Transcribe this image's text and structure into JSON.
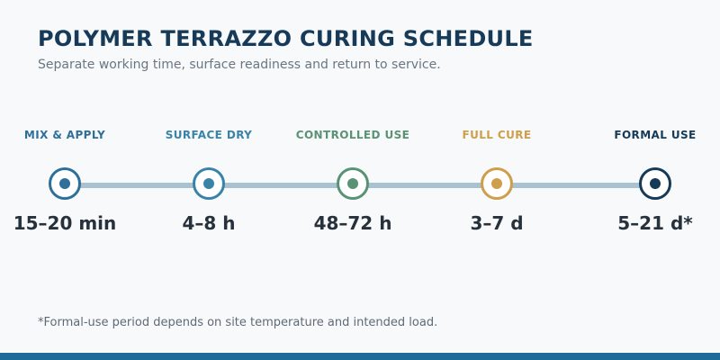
{
  "header": {
    "title": "POLYMER TERRAZZO CURING SCHEDULE",
    "subtitle": "Separate working time, surface readiness and return to service."
  },
  "stages": [
    {
      "label": "MIX & APPLY",
      "duration": "15–20 min",
      "color": "#2f6f9a"
    },
    {
      "label": "SURFACE DRY",
      "duration": "4–8 h",
      "color": "#3a83a8"
    },
    {
      "label": "CONTROLLED USE",
      "duration": "48–72 h",
      "color": "#5a9276"
    },
    {
      "label": "FULL CURE",
      "duration": "3–7 d",
      "color": "#cf9e4a"
    },
    {
      "label": "FORMAL USE",
      "duration": "5–21 d*",
      "color": "#163a57"
    }
  ],
  "footnote": "*Formal-use period depends on site temperature and intended load.",
  "colors": {
    "title": "#163a57",
    "track": "#a9c2d2",
    "bottom_bar": "#1f6b98"
  }
}
